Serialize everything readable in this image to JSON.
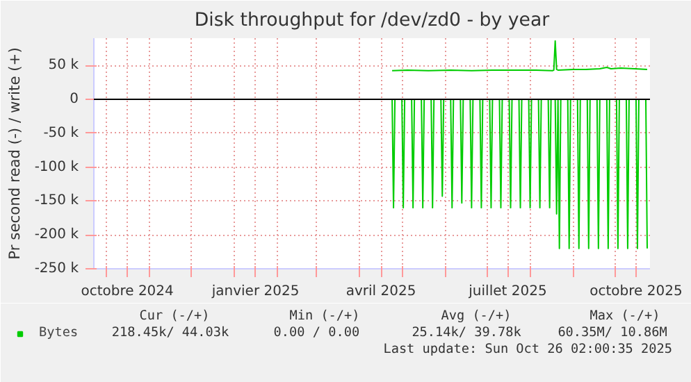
{
  "chart_data": {
    "type": "line",
    "title": "Disk throughput for /dev/zd0 - by year",
    "ylabel": "Pr second read (-) / write (+)",
    "xlim": [
      "2024-09-22",
      "2025-10-26"
    ],
    "xticks": [
      {
        "value": "2024-10-01",
        "label": null
      },
      {
        "value": "2024-10-16",
        "label": "octobre 2024"
      },
      {
        "value": "2024-11-01",
        "label": null
      },
      {
        "value": "2024-12-01",
        "label": null
      },
      {
        "value": "2025-01-01",
        "label": null
      },
      {
        "value": "2025-01-16",
        "label": "janvier 2025"
      },
      {
        "value": "2025-02-01",
        "label": null
      },
      {
        "value": "2025-03-01",
        "label": null
      },
      {
        "value": "2025-04-01",
        "label": null
      },
      {
        "value": "2025-04-16",
        "label": "avril 2025"
      },
      {
        "value": "2025-05-01",
        "label": null
      },
      {
        "value": "2025-06-01",
        "label": null
      },
      {
        "value": "2025-07-01",
        "label": null
      },
      {
        "value": "2025-07-16",
        "label": "juillet 2025"
      },
      {
        "value": "2025-08-01",
        "label": null
      },
      {
        "value": "2025-09-01",
        "label": null
      },
      {
        "value": "2025-10-01",
        "label": null
      },
      {
        "value": "2025-10-16",
        "label": "octobre 2025"
      }
    ],
    "ylim": [
      -250000,
      90000
    ],
    "yticks": [
      {
        "value": -250000,
        "label": "-250 k"
      },
      {
        "value": -200000,
        "label": "-200 k"
      },
      {
        "value": -150000,
        "label": "-150 k"
      },
      {
        "value": -100000,
        "label": "-100 k"
      },
      {
        "value": -50000,
        "label": "-50 k"
      },
      0,
      {
        "value": 50000,
        "label": "50 k"
      }
    ],
    "grid": true,
    "legend": "bottom",
    "line_style": "solid",
    "marker": "none",
    "ref_lines": [
      {
        "axis": "y",
        "value": 0,
        "color": "#000000"
      }
    ],
    "series": [
      {
        "name": "Bytes",
        "color": "#00cc00",
        "x": [
          "2025-04-24",
          "2025-05-05",
          "2025-05-20",
          "2025-06-05",
          "2025-06-20",
          "2025-07-05",
          "2025-07-20",
          "2025-08-05",
          "2025-08-17",
          "2025-08-18",
          "2025-08-19",
          "2025-08-20",
          "2025-08-21",
          "2025-09-01",
          "2025-09-10",
          "2025-09-20",
          "2025-09-25",
          "2025-09-28",
          "2025-10-05",
          "2025-10-15",
          "2025-10-24"
        ],
        "values": [
          42000,
          43000,
          42000,
          43000,
          42000,
          43000,
          43000,
          43000,
          42000,
          43000,
          86000,
          44000,
          43000,
          44000,
          44000,
          45000,
          47000,
          45000,
          46000,
          45000,
          44000
        ]
      },
      {
        "color": "#00cc00",
        "x": [
          "2025-04-24",
          "2025-04-25",
          "2025-04-26",
          "2025-05-01",
          "2025-05-02",
          "2025-05-03",
          "2025-05-08",
          "2025-05-09",
          "2025-05-10",
          "2025-05-15",
          "2025-05-16",
          "2025-05-17",
          "2025-05-22",
          "2025-05-23",
          "2025-05-24",
          "2025-05-29",
          "2025-05-30",
          "2025-05-31",
          "2025-06-05",
          "2025-06-06",
          "2025-06-07",
          "2025-06-12",
          "2025-06-13",
          "2025-06-14",
          "2025-06-19",
          "2025-06-20",
          "2025-06-21",
          "2025-06-26",
          "2025-06-27",
          "2025-06-28",
          "2025-07-03",
          "2025-07-04",
          "2025-07-05",
          "2025-07-10",
          "2025-07-11",
          "2025-07-12",
          "2025-07-17",
          "2025-07-18",
          "2025-07-19",
          "2025-07-24",
          "2025-07-25",
          "2025-07-26",
          "2025-07-31",
          "2025-08-01",
          "2025-08-02",
          "2025-08-07",
          "2025-08-08",
          "2025-08-09",
          "2025-08-14",
          "2025-08-15",
          "2025-08-16",
          "2025-08-19",
          "2025-08-20",
          "2025-08-21",
          "2025-08-22",
          "2025-08-23",
          "2025-08-28",
          "2025-08-29",
          "2025-08-30",
          "2025-09-04",
          "2025-09-05",
          "2025-09-06",
          "2025-09-11",
          "2025-09-12",
          "2025-09-13",
          "2025-09-18",
          "2025-09-19",
          "2025-09-20",
          "2025-09-25",
          "2025-09-26",
          "2025-09-27",
          "2025-10-02",
          "2025-10-03",
          "2025-10-04",
          "2025-10-09",
          "2025-10-10",
          "2025-10-11",
          "2025-10-16",
          "2025-10-17",
          "2025-10-18",
          "2025-10-23",
          "2025-10-24"
        ],
        "values": [
          0,
          -160000,
          0,
          0,
          -160000,
          0,
          0,
          -160000,
          0,
          0,
          -160000,
          0,
          0,
          -160000,
          0,
          0,
          -143000,
          0,
          0,
          -160000,
          0,
          0,
          -153000,
          0,
          0,
          -160000,
          0,
          0,
          -160000,
          0,
          0,
          -160000,
          0,
          0,
          -160000,
          0,
          0,
          -160000,
          0,
          0,
          -160000,
          0,
          0,
          -160000,
          0,
          0,
          -160000,
          0,
          0,
          -160000,
          0,
          0,
          -169000,
          0,
          -220000,
          0,
          0,
          -220000,
          0,
          0,
          -220000,
          0,
          0,
          -220000,
          0,
          0,
          -220000,
          0,
          0,
          -220000,
          0,
          0,
          -220000,
          0,
          0,
          -220000,
          0,
          0,
          -220000,
          0,
          0,
          -220000
        ]
      }
    ],
    "annotations": [
      "Cur (-/+)",
      "Min (-/+)",
      "Avg (-/+)",
      "Max (-/+)",
      "218.45k/ 44.03k",
      "0.00 /  0.00",
      "25.14k/ 39.78k",
      "60.35M/ 10.86M",
      "Last update: Sun Oct 26 02:00:35 2025"
    ]
  }
}
